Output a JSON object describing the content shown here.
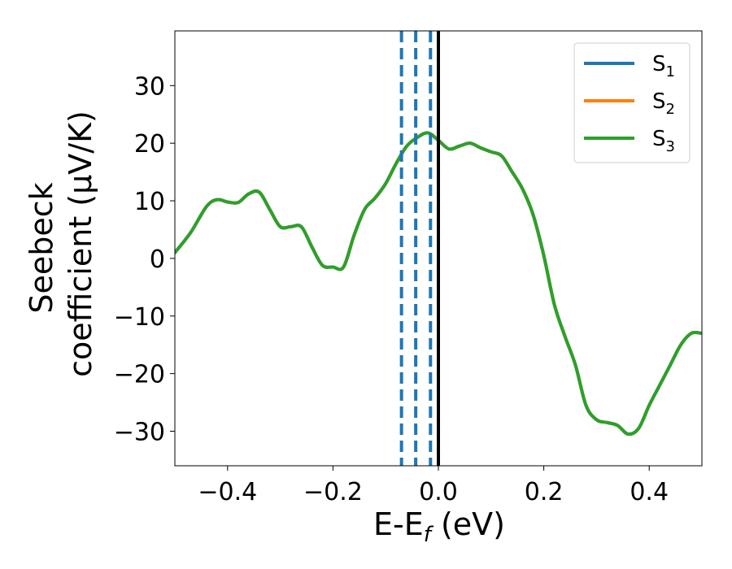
{
  "chart_data": {
    "type": "line",
    "xlabel": "E-E_f (eV)",
    "xlabel_parts": {
      "main": "E-E",
      "sub": "f",
      "tail": " (eV)"
    },
    "ylabel_line1": "Seebeck",
    "ylabel_line2": "coefficient  (μV/K)",
    "xlim": [
      -0.5,
      0.5
    ],
    "ylim": [
      -36,
      39.5
    ],
    "xticks": [
      -0.4,
      -0.2,
      0.0,
      0.2,
      0.4
    ],
    "xtick_labels": [
      "−0.4",
      "−0.2",
      "0.0",
      "0.2",
      "0.4"
    ],
    "yticks": [
      -30,
      -20,
      -10,
      0,
      10,
      20,
      30
    ],
    "ytick_labels": [
      "−30",
      "−20",
      "−10",
      "0",
      "10",
      "20",
      "30"
    ],
    "legend_position": "top-right",
    "vertical_lines": [
      {
        "x": -0.07,
        "style": "dashed",
        "color": "#1f77b4"
      },
      {
        "x": -0.043,
        "style": "dashed",
        "color": "#1f77b4"
      },
      {
        "x": -0.015,
        "style": "dashed",
        "color": "#1f77b4"
      },
      {
        "x": 0.0,
        "style": "solid",
        "color": "#000000"
      }
    ],
    "series": [
      {
        "name": "S1",
        "legend_main": "S",
        "legend_sub": "1",
        "color": "#1f77b4",
        "x": [
          -0.5,
          -0.47,
          -0.44,
          -0.42,
          -0.4,
          -0.38,
          -0.36,
          -0.34,
          -0.32,
          -0.3,
          -0.28,
          -0.26,
          -0.24,
          -0.22,
          -0.2,
          -0.18,
          -0.16,
          -0.14,
          -0.12,
          -0.1,
          -0.08,
          -0.06,
          -0.04,
          -0.02,
          0.0,
          0.02,
          0.04,
          0.06,
          0.08,
          0.1,
          0.12,
          0.14,
          0.16,
          0.18,
          0.2,
          0.22,
          0.24,
          0.26,
          0.28,
          0.3,
          0.32,
          0.34,
          0.36,
          0.38,
          0.4,
          0.42,
          0.44,
          0.46,
          0.48,
          0.5
        ],
        "y": [
          1.0,
          4.5,
          9.0,
          10.2,
          9.8,
          9.7,
          11.2,
          11.5,
          8.5,
          5.5,
          5.5,
          5.5,
          2.0,
          -1.2,
          -1.5,
          -1.5,
          4.0,
          8.5,
          10.5,
          13.0,
          16.5,
          19.5,
          21.0,
          21.8,
          20.5,
          19.0,
          19.5,
          20.0,
          19.2,
          18.5,
          17.8,
          15.0,
          12.0,
          7.5,
          0.5,
          -8.0,
          -13.5,
          -18.5,
          -25.5,
          -28.0,
          -28.5,
          -29.0,
          -30.5,
          -29.5,
          -25.5,
          -22.0,
          -18.5,
          -15.0,
          -13.0,
          -13.0
        ]
      },
      {
        "name": "S2",
        "legend_main": "S",
        "legend_sub": "2",
        "color": "#ff7f0e",
        "x": [
          -0.5,
          -0.47,
          -0.44,
          -0.42,
          -0.4,
          -0.38,
          -0.36,
          -0.34,
          -0.32,
          -0.3,
          -0.28,
          -0.26,
          -0.24,
          -0.22,
          -0.2,
          -0.18,
          -0.16,
          -0.14,
          -0.12,
          -0.1,
          -0.08,
          -0.06,
          -0.04,
          -0.02,
          0.0,
          0.02,
          0.04,
          0.06,
          0.08,
          0.1,
          0.12,
          0.14,
          0.16,
          0.18,
          0.2,
          0.22,
          0.24,
          0.26,
          0.28,
          0.3,
          0.32,
          0.34,
          0.36,
          0.38,
          0.4,
          0.42,
          0.44,
          0.46,
          0.48,
          0.5
        ],
        "y": [
          1.0,
          4.5,
          9.0,
          10.2,
          9.8,
          9.7,
          11.2,
          11.5,
          8.5,
          5.5,
          5.5,
          5.5,
          2.0,
          -1.2,
          -1.5,
          -1.5,
          4.0,
          8.5,
          10.5,
          13.0,
          16.5,
          19.5,
          21.0,
          21.8,
          20.5,
          19.0,
          19.5,
          20.0,
          19.2,
          18.5,
          17.8,
          15.0,
          12.0,
          7.5,
          0.5,
          -8.0,
          -13.5,
          -18.5,
          -25.5,
          -28.0,
          -28.5,
          -29.0,
          -30.5,
          -29.5,
          -25.5,
          -22.0,
          -18.5,
          -15.0,
          -13.0,
          -13.0
        ]
      },
      {
        "name": "S3",
        "legend_main": "S",
        "legend_sub": "3",
        "color": "#2ca02c",
        "x": [
          -0.5,
          -0.47,
          -0.44,
          -0.42,
          -0.4,
          -0.38,
          -0.36,
          -0.34,
          -0.32,
          -0.3,
          -0.28,
          -0.26,
          -0.24,
          -0.22,
          -0.2,
          -0.18,
          -0.16,
          -0.14,
          -0.12,
          -0.1,
          -0.08,
          -0.06,
          -0.04,
          -0.02,
          0.0,
          0.02,
          0.04,
          0.06,
          0.08,
          0.1,
          0.12,
          0.14,
          0.16,
          0.18,
          0.2,
          0.22,
          0.24,
          0.26,
          0.28,
          0.3,
          0.32,
          0.34,
          0.36,
          0.38,
          0.4,
          0.42,
          0.44,
          0.46,
          0.48,
          0.5
        ],
        "y": [
          1.0,
          4.5,
          9.0,
          10.2,
          9.8,
          9.7,
          11.2,
          11.5,
          8.5,
          5.5,
          5.5,
          5.5,
          2.0,
          -1.2,
          -1.5,
          -1.5,
          4.0,
          8.5,
          10.5,
          13.0,
          16.5,
          19.5,
          21.0,
          21.8,
          20.5,
          19.0,
          19.5,
          20.0,
          19.2,
          18.5,
          17.8,
          15.0,
          12.0,
          7.5,
          0.5,
          -8.0,
          -13.5,
          -18.5,
          -25.5,
          -28.0,
          -28.5,
          -29.0,
          -30.5,
          -29.5,
          -25.5,
          -22.0,
          -18.5,
          -15.0,
          -13.0,
          -13.0
        ]
      }
    ]
  }
}
